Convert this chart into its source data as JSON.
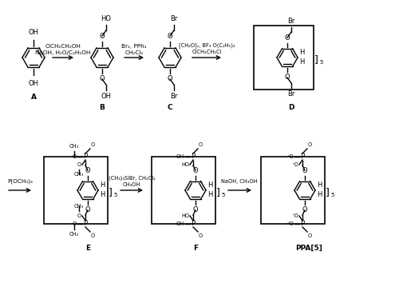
{
  "bg_color": "#ffffff",
  "fig_width": 5.0,
  "fig_height": 3.54,
  "dpi": 100,
  "top_row": {
    "arrow1_label_top": "ClCH₂CH₂OH",
    "arrow1_label_bot": "NaOH, H₂O/C₂H₅OH",
    "arrow2_label_top": "Br₂, PPh₃",
    "arrow2_label_bot": "CH₂Cl₂",
    "arrow3_label_top": "[CH₂O]ₙ, BF₃ O(C₂H₅)₂",
    "arrow3_label_bot": "ClCH₂CH₂Cl",
    "label_A": "A",
    "label_B": "B",
    "label_C": "C",
    "label_D": "D"
  },
  "bot_row": {
    "arrow0_label": "P(OCH₃)₃",
    "arrow1_label_top": "(CH₃)₃SiBr, CH₂Cl₂",
    "arrow1_label_bot": "CH₃OH",
    "arrow2_label_top": "NaOH, CH₃OH",
    "label_E": "E",
    "label_F": "F",
    "label_PPA5": "PPA[5]"
  }
}
